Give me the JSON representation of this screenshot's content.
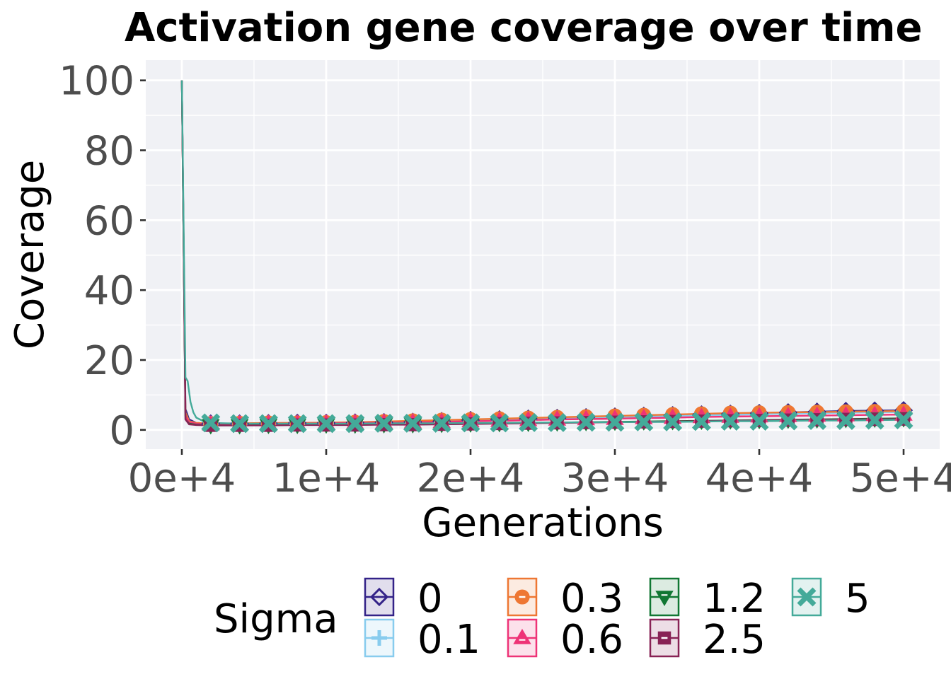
{
  "chart_data": {
    "type": "line",
    "title": "Activation gene coverage over time",
    "xlabel": "Generations",
    "ylabel": "Coverage",
    "xlim": [
      -2500,
      52500
    ],
    "ylim": [
      -5.5,
      105.8
    ],
    "x_ticks": [
      0,
      10000,
      20000,
      30000,
      40000,
      50000
    ],
    "x_tick_labels": [
      "0e+4",
      "1e+4",
      "2e+4",
      "3e+4",
      "4e+4",
      "5e+4"
    ],
    "y_ticks": [
      0,
      20,
      40,
      60,
      80,
      100
    ],
    "y_tick_labels": [
      "0",
      "20",
      "40",
      "60",
      "80",
      "100"
    ],
    "grid": true,
    "legend": {
      "title": "Sigma",
      "position": "bottom"
    },
    "series": [
      {
        "name": "0",
        "color": "#332288",
        "marker": "diamond",
        "x": [
          0,
          250,
          500,
          1000,
          2000,
          4000,
          6000,
          8000,
          10000,
          12000,
          14000,
          16000,
          18000,
          20000,
          22000,
          24000,
          26000,
          28000,
          30000,
          32000,
          34000,
          36000,
          38000,
          40000,
          42000,
          44000,
          46000,
          48000,
          50000
        ],
        "y": [
          100,
          6,
          3,
          2,
          1.8,
          1.8,
          1.9,
          2,
          2,
          2.1,
          2.2,
          2.3,
          2.5,
          2.8,
          3,
          3.2,
          3.4,
          3.6,
          3.8,
          4,
          4.2,
          4.4,
          4.6,
          4.8,
          5,
          5.2,
          5.4,
          5.5,
          5.6
        ]
      },
      {
        "name": "0.1",
        "color": "#88ccee",
        "marker": "plus",
        "x": [
          0,
          250,
          500,
          1000,
          2000,
          4000,
          6000,
          8000,
          10000,
          12000,
          14000,
          16000,
          18000,
          20000,
          22000,
          24000,
          26000,
          28000,
          30000,
          32000,
          34000,
          36000,
          38000,
          40000,
          42000,
          44000,
          46000,
          48000,
          50000
        ],
        "y": [
          100,
          5,
          2.5,
          2,
          1.8,
          1.8,
          1.9,
          1.9,
          2,
          2.1,
          2.2,
          2.3,
          2.5,
          2.7,
          2.9,
          3.1,
          3.3,
          3.5,
          3.7,
          3.8,
          4,
          4.2,
          4.3,
          4.5,
          4.6,
          4.8,
          4.9,
          5,
          5.1
        ]
      },
      {
        "name": "0.3",
        "color": "#ee7733",
        "marker": "circle-minus",
        "x": [
          0,
          250,
          500,
          1000,
          2000,
          4000,
          6000,
          8000,
          10000,
          12000,
          14000,
          16000,
          18000,
          20000,
          22000,
          24000,
          26000,
          28000,
          30000,
          32000,
          34000,
          36000,
          38000,
          40000,
          42000,
          44000,
          46000,
          48000,
          50000
        ],
        "y": [
          100,
          5,
          2.5,
          2,
          1.8,
          1.9,
          2,
          2,
          2.1,
          2.2,
          2.4,
          2.6,
          2.8,
          3,
          3.2,
          3.4,
          3.6,
          3.8,
          4,
          4.2,
          4.4,
          4.6,
          4.8,
          4.9,
          5,
          5.1,
          5.2,
          5.3,
          5.4
        ]
      },
      {
        "name": "0.6",
        "color": "#ee3377",
        "marker": "triangle-up",
        "x": [
          0,
          250,
          500,
          1000,
          2000,
          4000,
          6000,
          8000,
          10000,
          12000,
          14000,
          16000,
          18000,
          20000,
          22000,
          24000,
          26000,
          28000,
          30000,
          32000,
          34000,
          36000,
          38000,
          40000,
          42000,
          44000,
          46000,
          48000,
          50000
        ],
        "y": [
          100,
          4,
          2.2,
          1.8,
          1.6,
          1.7,
          1.8,
          1.8,
          1.9,
          2,
          2.1,
          2.2,
          2.3,
          2.5,
          2.6,
          2.8,
          3,
          3.1,
          3.2,
          3.4,
          3.5,
          3.7,
          3.8,
          3.9,
          4,
          4.1,
          4.2,
          4.3,
          4.4
        ]
      },
      {
        "name": "1.2",
        "color": "#117733",
        "marker": "triangle-down",
        "x": [
          0,
          250,
          500,
          1000,
          2000,
          4000,
          6000,
          8000,
          10000,
          12000,
          14000,
          16000,
          18000,
          20000,
          22000,
          24000,
          26000,
          28000,
          30000,
          32000,
          34000,
          36000,
          38000,
          40000,
          42000,
          44000,
          46000,
          48000,
          50000
        ],
        "y": [
          100,
          3,
          1.8,
          1.5,
          1.3,
          1.3,
          1.4,
          1.4,
          1.5,
          1.5,
          1.6,
          1.6,
          1.7,
          1.8,
          1.9,
          2,
          2.1,
          2.2,
          2.3,
          2.4,
          2.5,
          2.6,
          2.7,
          2.8,
          2.9,
          3,
          3.1,
          3.2,
          3.3
        ]
      },
      {
        "name": "2.5",
        "color": "#882255",
        "marker": "square-minus",
        "x": [
          0,
          250,
          500,
          1000,
          2000,
          4000,
          6000,
          8000,
          10000,
          12000,
          14000,
          16000,
          18000,
          20000,
          22000,
          24000,
          26000,
          28000,
          30000,
          32000,
          34000,
          36000,
          38000,
          40000,
          42000,
          44000,
          46000,
          48000,
          50000
        ],
        "y": [
          100,
          3,
          1.6,
          1.4,
          1.3,
          1.3,
          1.3,
          1.4,
          1.4,
          1.4,
          1.5,
          1.5,
          1.6,
          1.7,
          1.8,
          1.9,
          2,
          2.1,
          2.2,
          2.3,
          2.4,
          2.5,
          2.6,
          2.7,
          2.8,
          2.9,
          3,
          3,
          3.1
        ]
      },
      {
        "name": "5",
        "color": "#44aa99",
        "marker": "cross",
        "x": [
          0,
          250,
          400,
          600,
          800,
          1000,
          1500,
          2000,
          4000,
          6000,
          8000,
          10000,
          12000,
          14000,
          16000,
          18000,
          20000,
          22000,
          24000,
          26000,
          28000,
          30000,
          32000,
          34000,
          36000,
          38000,
          40000,
          42000,
          44000,
          46000,
          48000,
          50000
        ],
        "y": [
          100,
          15,
          14,
          8,
          5,
          3.5,
          2.5,
          2,
          1.8,
          1.8,
          1.8,
          1.8,
          1.8,
          1.9,
          1.9,
          1.9,
          2,
          2,
          2.1,
          2.1,
          2.2,
          2.2,
          2.3,
          2.3,
          2.4,
          2.5,
          2.5,
          2.6,
          2.7,
          2.7,
          2.8,
          2.9
        ]
      }
    ]
  }
}
